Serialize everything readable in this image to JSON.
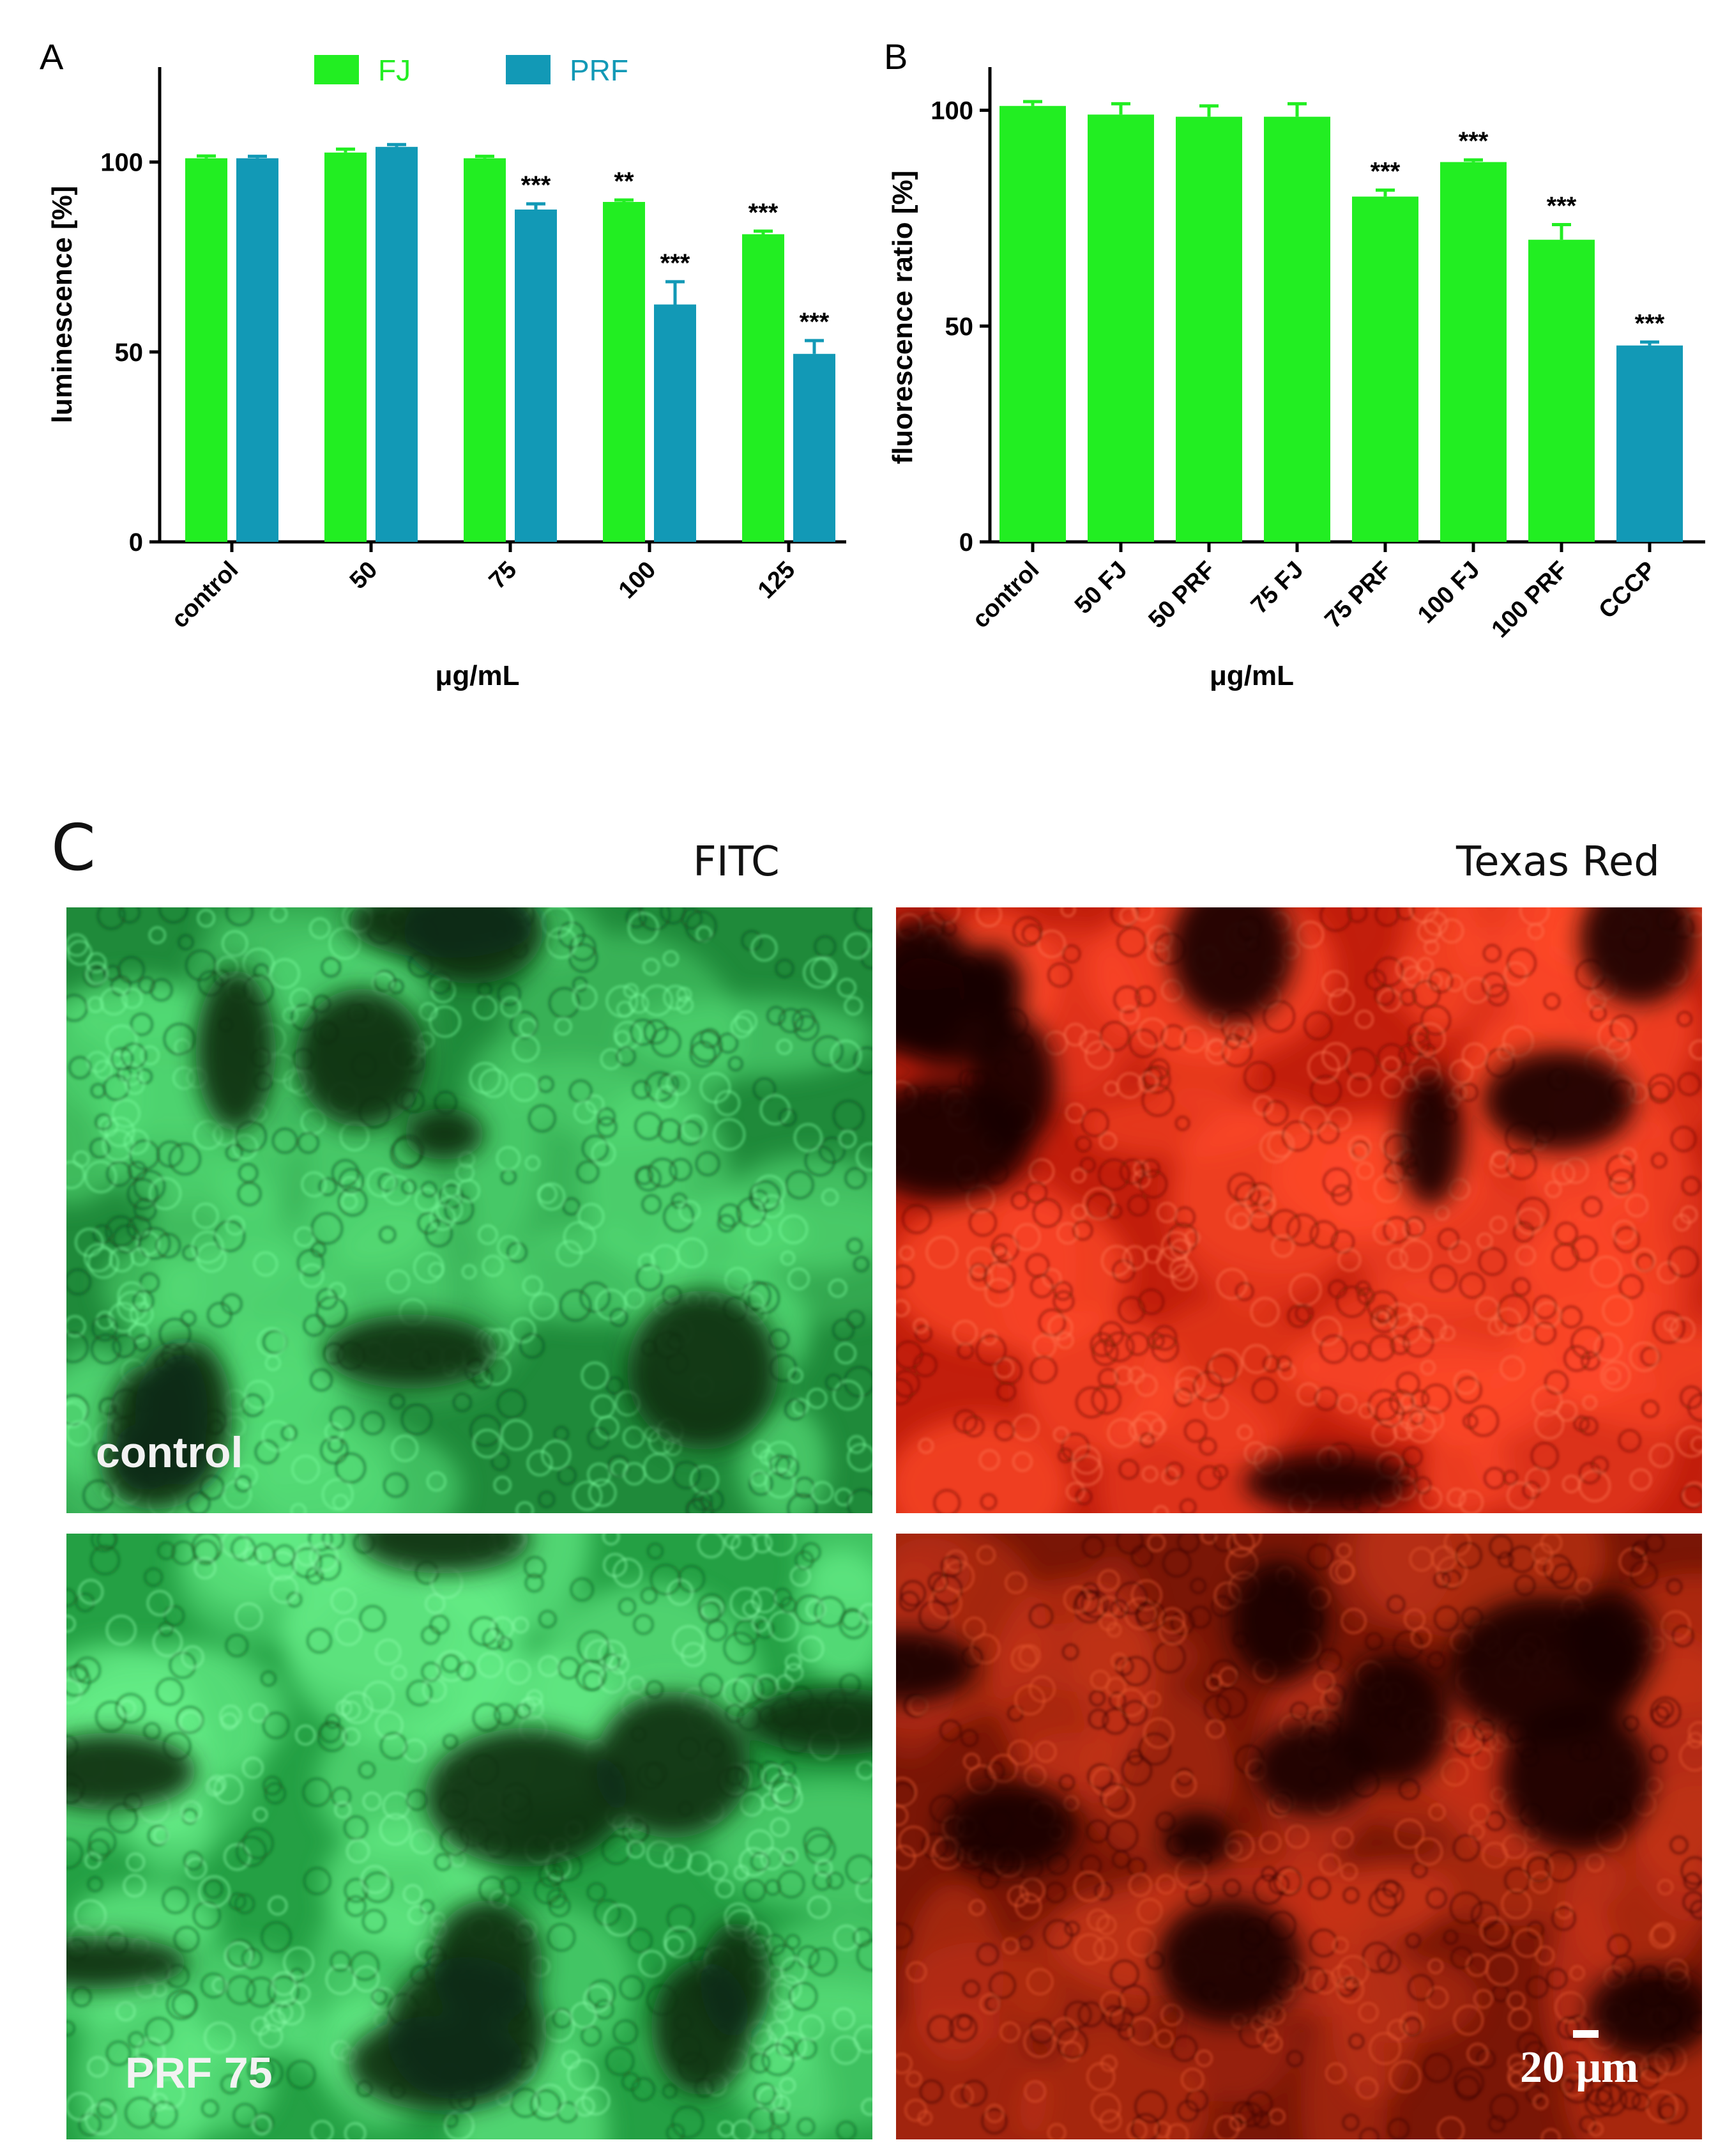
{
  "colors": {
    "fj": "#22ee22",
    "prf": "#1299b6",
    "axis": "#000000"
  },
  "chart_data": [
    {
      "panel": "A",
      "type": "bar",
      "ylabel": "luminescence [%]",
      "xlabel": "μg/mL",
      "ylim": [
        0,
        125
      ],
      "yticks": [
        "0",
        "50",
        "100"
      ],
      "categories": [
        "control",
        "50",
        "75",
        "100",
        "125"
      ],
      "legend": {
        "placement": "top",
        "entries": [
          "FJ",
          "PRF"
        ]
      },
      "series": [
        {
          "name": "FJ",
          "color": "#22ee22",
          "values": [
            101,
            102.5,
            101,
            89.5,
            81
          ],
          "errors": [
            0.6,
            0.9,
            0.5,
            0.5,
            0.8
          ],
          "annotations": [
            "",
            "",
            "",
            "**",
            "***"
          ]
        },
        {
          "name": "PRF",
          "color": "#1299b6",
          "values": [
            101,
            104,
            87.5,
            62.5,
            49.5
          ],
          "errors": [
            0.5,
            0.6,
            1.5,
            6,
            3.5
          ],
          "annotations": [
            "",
            "",
            "***",
            "***",
            "***"
          ]
        }
      ]
    },
    {
      "panel": "B",
      "type": "bar",
      "ylabel": "fluorescence ratio [%]",
      "xlabel": "μg/mL",
      "ylim": [
        0,
        110
      ],
      "yticks": [
        "0",
        "50",
        "100"
      ],
      "categories": [
        "control",
        "50 FJ",
        "50 PRF",
        "75 FJ",
        "75 PRF",
        "100 FJ",
        "100 PRF",
        "CCCP"
      ],
      "values": [
        101,
        99,
        98.5,
        98.5,
        80,
        88,
        70,
        45.5
      ],
      "errors": [
        1,
        2.5,
        2.5,
        3,
        1.5,
        0.5,
        3.5,
        0.8
      ],
      "bar_colors": [
        "#22ee22",
        "#22ee22",
        "#22ee22",
        "#22ee22",
        "#22ee22",
        "#22ee22",
        "#22ee22",
        "#1299b6"
      ],
      "annotations": [
        "",
        "",
        "",
        "",
        "***",
        "***",
        "***",
        "***"
      ]
    }
  ],
  "panelC": {
    "letter": "C",
    "columns": [
      "FITC",
      "Texas Red"
    ],
    "rows": [
      "control",
      "PRF 75"
    ],
    "scale_bar": "20 μm"
  }
}
